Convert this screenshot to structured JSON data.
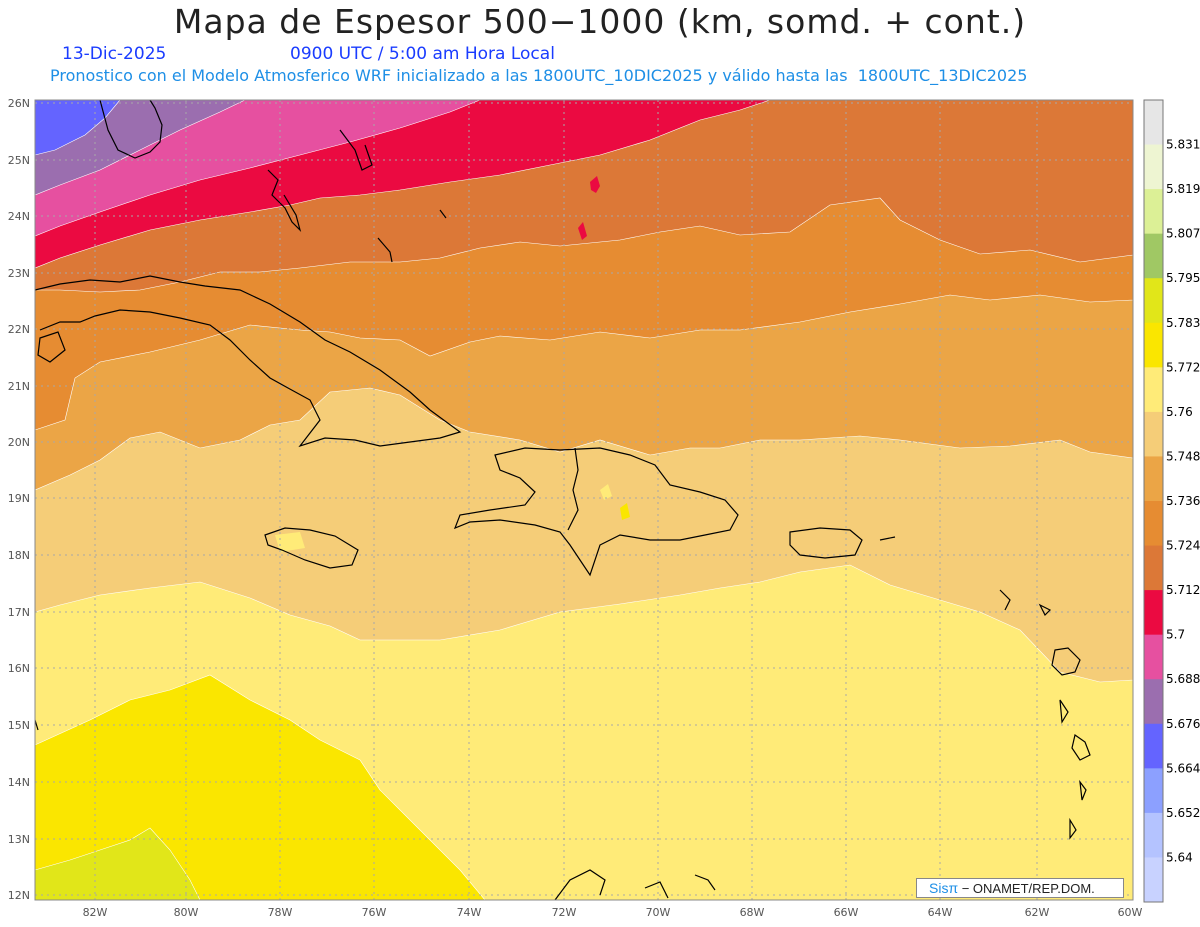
{
  "header": {
    "title": "Mapa de Espesor 500−1000 (km, somd. + cont.)",
    "date": "13-Dic-2025",
    "time": "0900 UTC / 5:00 am Hora Local",
    "subtitle": "Pronostico con el Modelo Atmosferico WRF inicializado a las 1800UTC_10DIC2025 y válido hasta las  1800UTC_13DIC2025"
  },
  "map": {
    "lon_range": [
      -83.2,
      -60.0
    ],
    "lat_range": [
      11.85,
      26.2
    ],
    "lon_ticks": [
      "82W",
      "80W",
      "78W",
      "76W",
      "74W",
      "72W",
      "70W",
      "68W",
      "66W",
      "64W",
      "62W",
      "60W"
    ],
    "lat_ticks": [
      "26N",
      "25N",
      "24N",
      "23N",
      "22N",
      "21N",
      "20N",
      "19N",
      "18N",
      "17N",
      "16N",
      "15N",
      "14N",
      "13N",
      "12N"
    ]
  },
  "colorbar": {
    "labels": [
      "5.831",
      "5.819",
      "5.807",
      "5.795",
      "5.783",
      "5.772",
      "5.76",
      "5.748",
      "5.736",
      "5.724",
      "5.712",
      "5.7",
      "5.688",
      "5.676",
      "5.664",
      "5.652",
      "5.64"
    ],
    "colors": [
      "#e6e6e6",
      "#eef5d2",
      "#dcf096",
      "#a0c864",
      "#e1e619",
      "#fae600",
      "#ffeb78",
      "#f5cd78",
      "#eba546",
      "#e68c32",
      "#dc7837",
      "#eb0a41",
      "#e650a0",
      "#9b6eaf",
      "#6464ff",
      "#8ca0ff",
      "#b4c3ff",
      "#c8d2ff"
    ]
  },
  "credit": {
    "logo": "Sisπ",
    "text": " − ONAMET/REP.DOM."
  }
}
